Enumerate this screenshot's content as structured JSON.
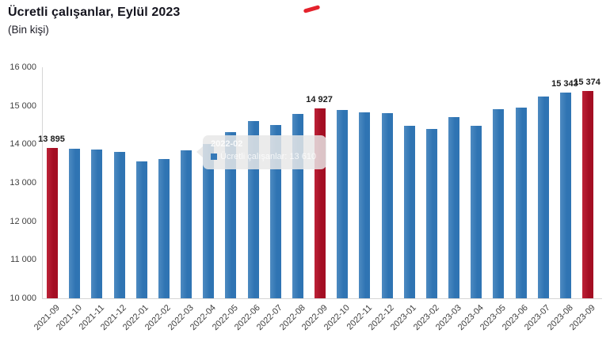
{
  "header": {
    "title": "Ücretli çalışanlar, Eylül 2023",
    "subtitle": "(Bin kişi)"
  },
  "colors": {
    "bar_blue": "#2f74b3",
    "bar_red": "#a40e23",
    "accent_red": "#e4222c",
    "axis_line": "#d6d6d6",
    "tick_text": "#3f3f3f",
    "tooltip_marker": "#3579b8"
  },
  "tooltip": {
    "title": "2022-02",
    "line2": "Ücretli çalışanlar: 13 610"
  },
  "chart_data": {
    "type": "bar",
    "title": "Ücretli çalışanlar, Eylül 2023",
    "subtitle": "(Bin kişi)",
    "xlabel": "",
    "ylabel": "Bin kişi",
    "ylim": [
      10000,
      16000
    ],
    "yticks": [
      10000,
      11000,
      12000,
      13000,
      14000,
      15000,
      16000
    ],
    "ytick_labels": [
      "10 000",
      "11 000",
      "12 000",
      "13 000",
      "14 000",
      "15 000",
      "16 000"
    ],
    "grid": false,
    "legend": "none",
    "categories": [
      "2021-09",
      "2021-10",
      "2021-11",
      "2021-12",
      "2022-01",
      "2022-02",
      "2022-03",
      "2022-04",
      "2022-05",
      "2022-06",
      "2022-07",
      "2022-08",
      "2022-09",
      "2022-10",
      "2022-11",
      "2022-12",
      "2023-01",
      "2023-02",
      "2023-03",
      "2023-04",
      "2023-05",
      "2023-06",
      "2023-07",
      "2023-08",
      "2023-09"
    ],
    "values": [
      13895,
      13880,
      13860,
      13805,
      13565,
      13610,
      13840,
      14010,
      14310,
      14600,
      14500,
      14780,
      14927,
      14890,
      14825,
      14800,
      14490,
      14395,
      14700,
      14480,
      14905,
      14950,
      15230,
      15343,
      15374
    ],
    "highlight_indices": [
      0,
      12,
      24
    ],
    "data_labels": {
      "0": "13 895",
      "12": "14 927",
      "23": "15 343",
      "24": "15 374"
    }
  }
}
